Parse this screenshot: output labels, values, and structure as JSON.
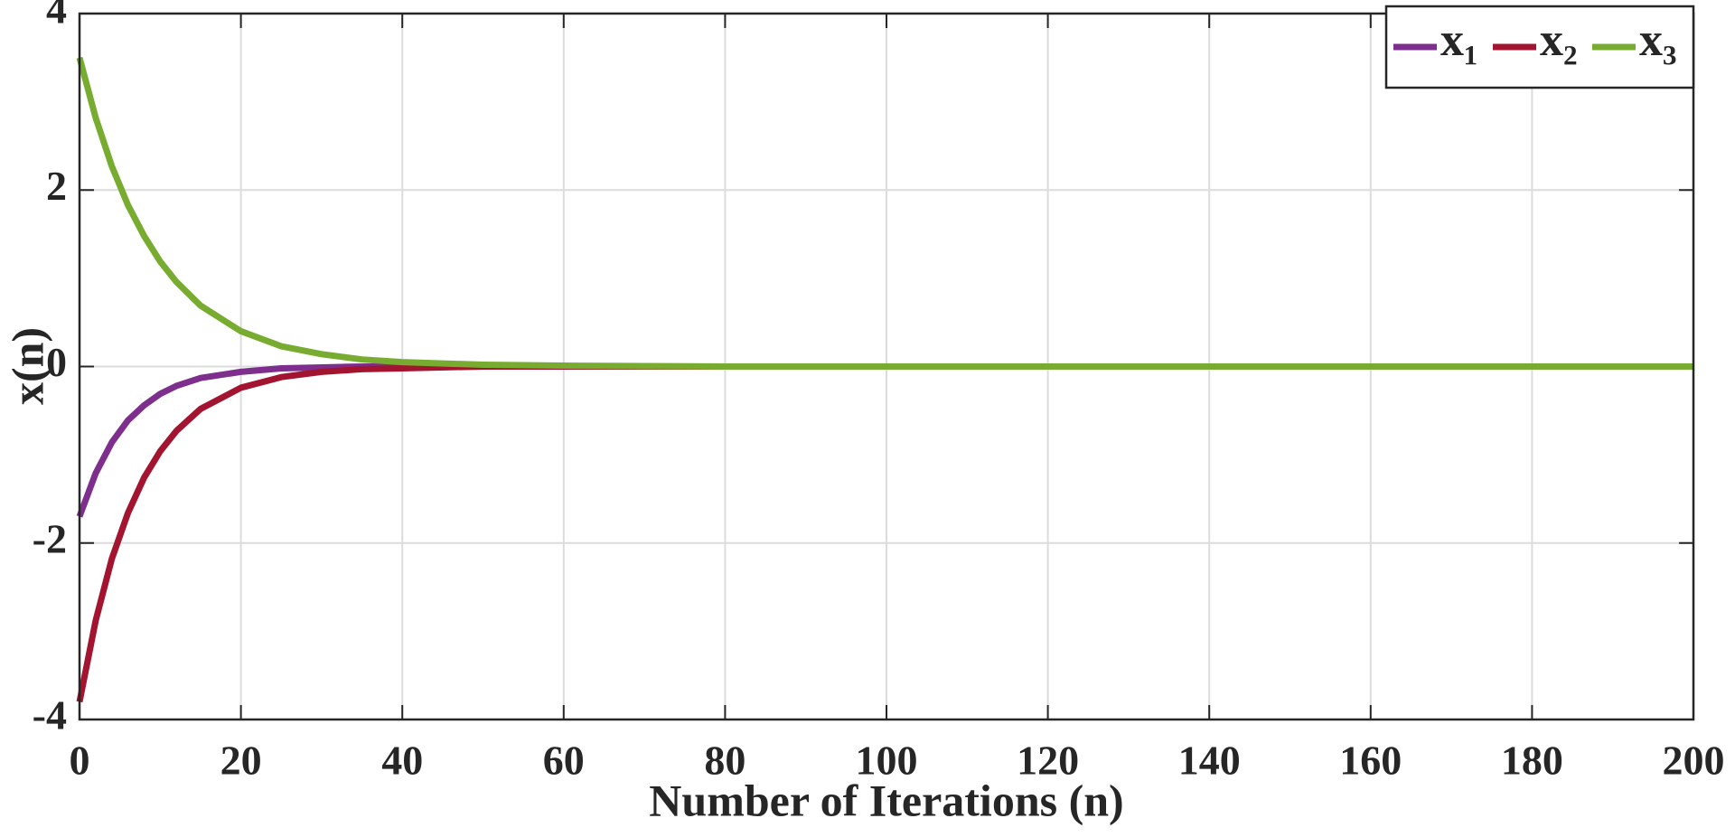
{
  "chart_data": {
    "type": "line",
    "xlabel": "Number of Iterations (n)",
    "ylabel": "x(n)",
    "x": [
      0,
      2,
      4,
      6,
      8,
      10,
      12,
      15,
      20,
      25,
      30,
      35,
      40,
      50,
      60,
      80,
      100,
      150,
      200
    ],
    "series": [
      {
        "name": "x₁",
        "color": "#7e2f8e",
        "values": [
          -1.7,
          -1.21,
          -0.86,
          -0.61,
          -0.44,
          -0.31,
          -0.22,
          -0.13,
          -0.06,
          -0.02,
          -0.01,
          0,
          0,
          0,
          0,
          0,
          0,
          0,
          0
        ]
      },
      {
        "name": "x₂",
        "color": "#a2142f",
        "values": [
          -3.8,
          -2.88,
          -2.18,
          -1.66,
          -1.26,
          -0.96,
          -0.73,
          -0.48,
          -0.24,
          -0.12,
          -0.06,
          -0.03,
          -0.02,
          0,
          0,
          0,
          0,
          0,
          0
        ]
      },
      {
        "name": "x₃",
        "color": "#77ac30",
        "values": [
          3.5,
          2.82,
          2.27,
          1.83,
          1.48,
          1.19,
          0.96,
          0.69,
          0.4,
          0.23,
          0.14,
          0.08,
          0.05,
          0.02,
          0.01,
          0,
          0,
          0,
          0
        ]
      }
    ],
    "xlim": [
      0,
      200
    ],
    "xticks": [
      0,
      20,
      40,
      60,
      80,
      100,
      120,
      140,
      160,
      180,
      200
    ],
    "ylim": [
      -4,
      4
    ],
    "yticks": [
      -4,
      -2,
      0,
      2,
      4
    ],
    "grid": true,
    "legend": "upper right"
  }
}
